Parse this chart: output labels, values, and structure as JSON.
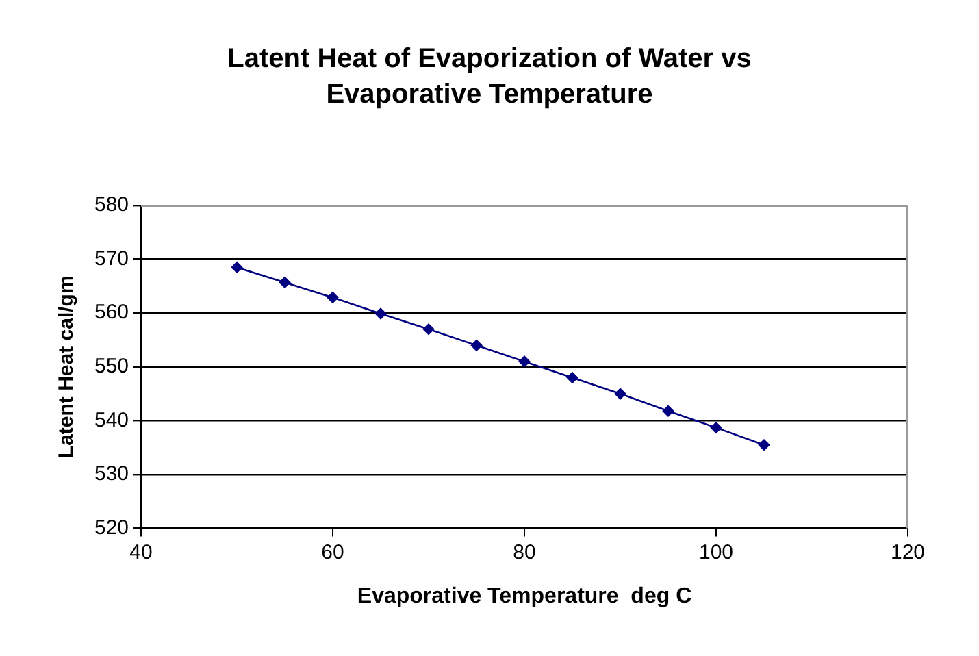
{
  "chart_data": {
    "type": "line",
    "title": "Latent Heat of Evaporization of Water vs Evaporative Temperature",
    "xlabel": "Evaporative Temperature  deg C",
    "ylabel": "Latent Heat cal/gm",
    "x": [
      50,
      55,
      60,
      65,
      70,
      75,
      80,
      85,
      90,
      95,
      100,
      105
    ],
    "series": [
      {
        "color": "#000080",
        "values": [
          568.5,
          565.7,
          562.9,
          559.9,
          557,
          554,
          551,
          548,
          545,
          541.8,
          538.7,
          535.5
        ]
      }
    ],
    "xlim": [
      40,
      120
    ],
    "xticks": [
      40,
      60,
      80,
      100,
      120
    ],
    "ylim": [
      520,
      580
    ],
    "yticks": [
      520,
      530,
      540,
      550,
      560,
      570,
      580
    ],
    "grid": "y",
    "legend": false,
    "marker": "diamond",
    "line_style": "solid"
  }
}
